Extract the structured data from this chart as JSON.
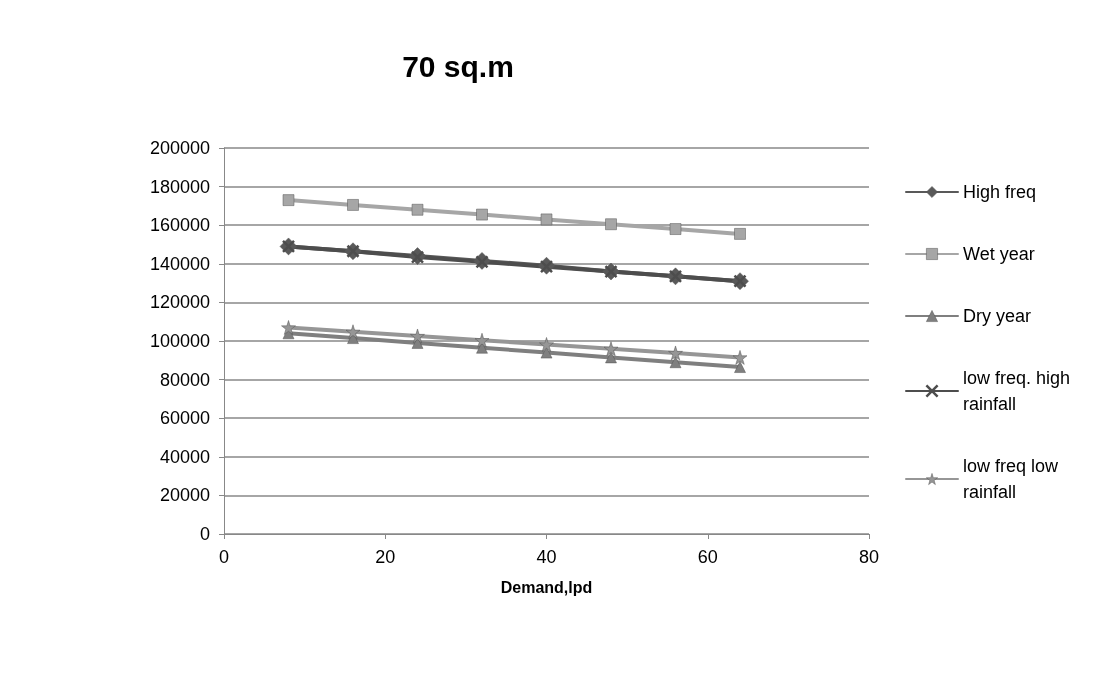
{
  "chart_data": {
    "type": "line",
    "title": "70 sq.m",
    "xlabel": "Demand,lpd",
    "x": [
      8,
      16,
      24,
      32,
      40,
      48,
      56,
      64
    ],
    "xlim": [
      0,
      80
    ],
    "xticks": [
      0,
      20,
      40,
      60,
      80
    ],
    "ylim": [
      0,
      200000
    ],
    "yticks": [
      0,
      20000,
      40000,
      60000,
      80000,
      100000,
      120000,
      140000,
      160000,
      180000,
      200000
    ],
    "grid": "y",
    "legend": "right",
    "line_style": "solid",
    "series": [
      {
        "name": "High freq",
        "color": "#595959",
        "marker": "diamond",
        "values": [
          149000,
          146500,
          144000,
          141500,
          139000,
          136000,
          133500,
          131000
        ]
      },
      {
        "name": "Wet year",
        "color": "#a6a6a6",
        "marker": "square",
        "values": [
          173000,
          170500,
          168000,
          165500,
          163000,
          160500,
          158000,
          155500
        ]
      },
      {
        "name": "Dry year",
        "color": "#7f7f7f",
        "marker": "triangle",
        "values": [
          104000,
          101500,
          99000,
          96500,
          94000,
          91500,
          89000,
          86500
        ]
      },
      {
        "name": "low freq. high rainfall",
        "color": "#4d4d4d",
        "marker": "cross",
        "values": [
          149000,
          146500,
          143500,
          141000,
          138500,
          136000,
          133500,
          131000
        ]
      },
      {
        "name": "low freq low rainfall",
        "color": "#969696",
        "marker": "star",
        "values": [
          107000,
          104800,
          102600,
          100400,
          98200,
          96000,
          93800,
          91500
        ]
      }
    ]
  }
}
